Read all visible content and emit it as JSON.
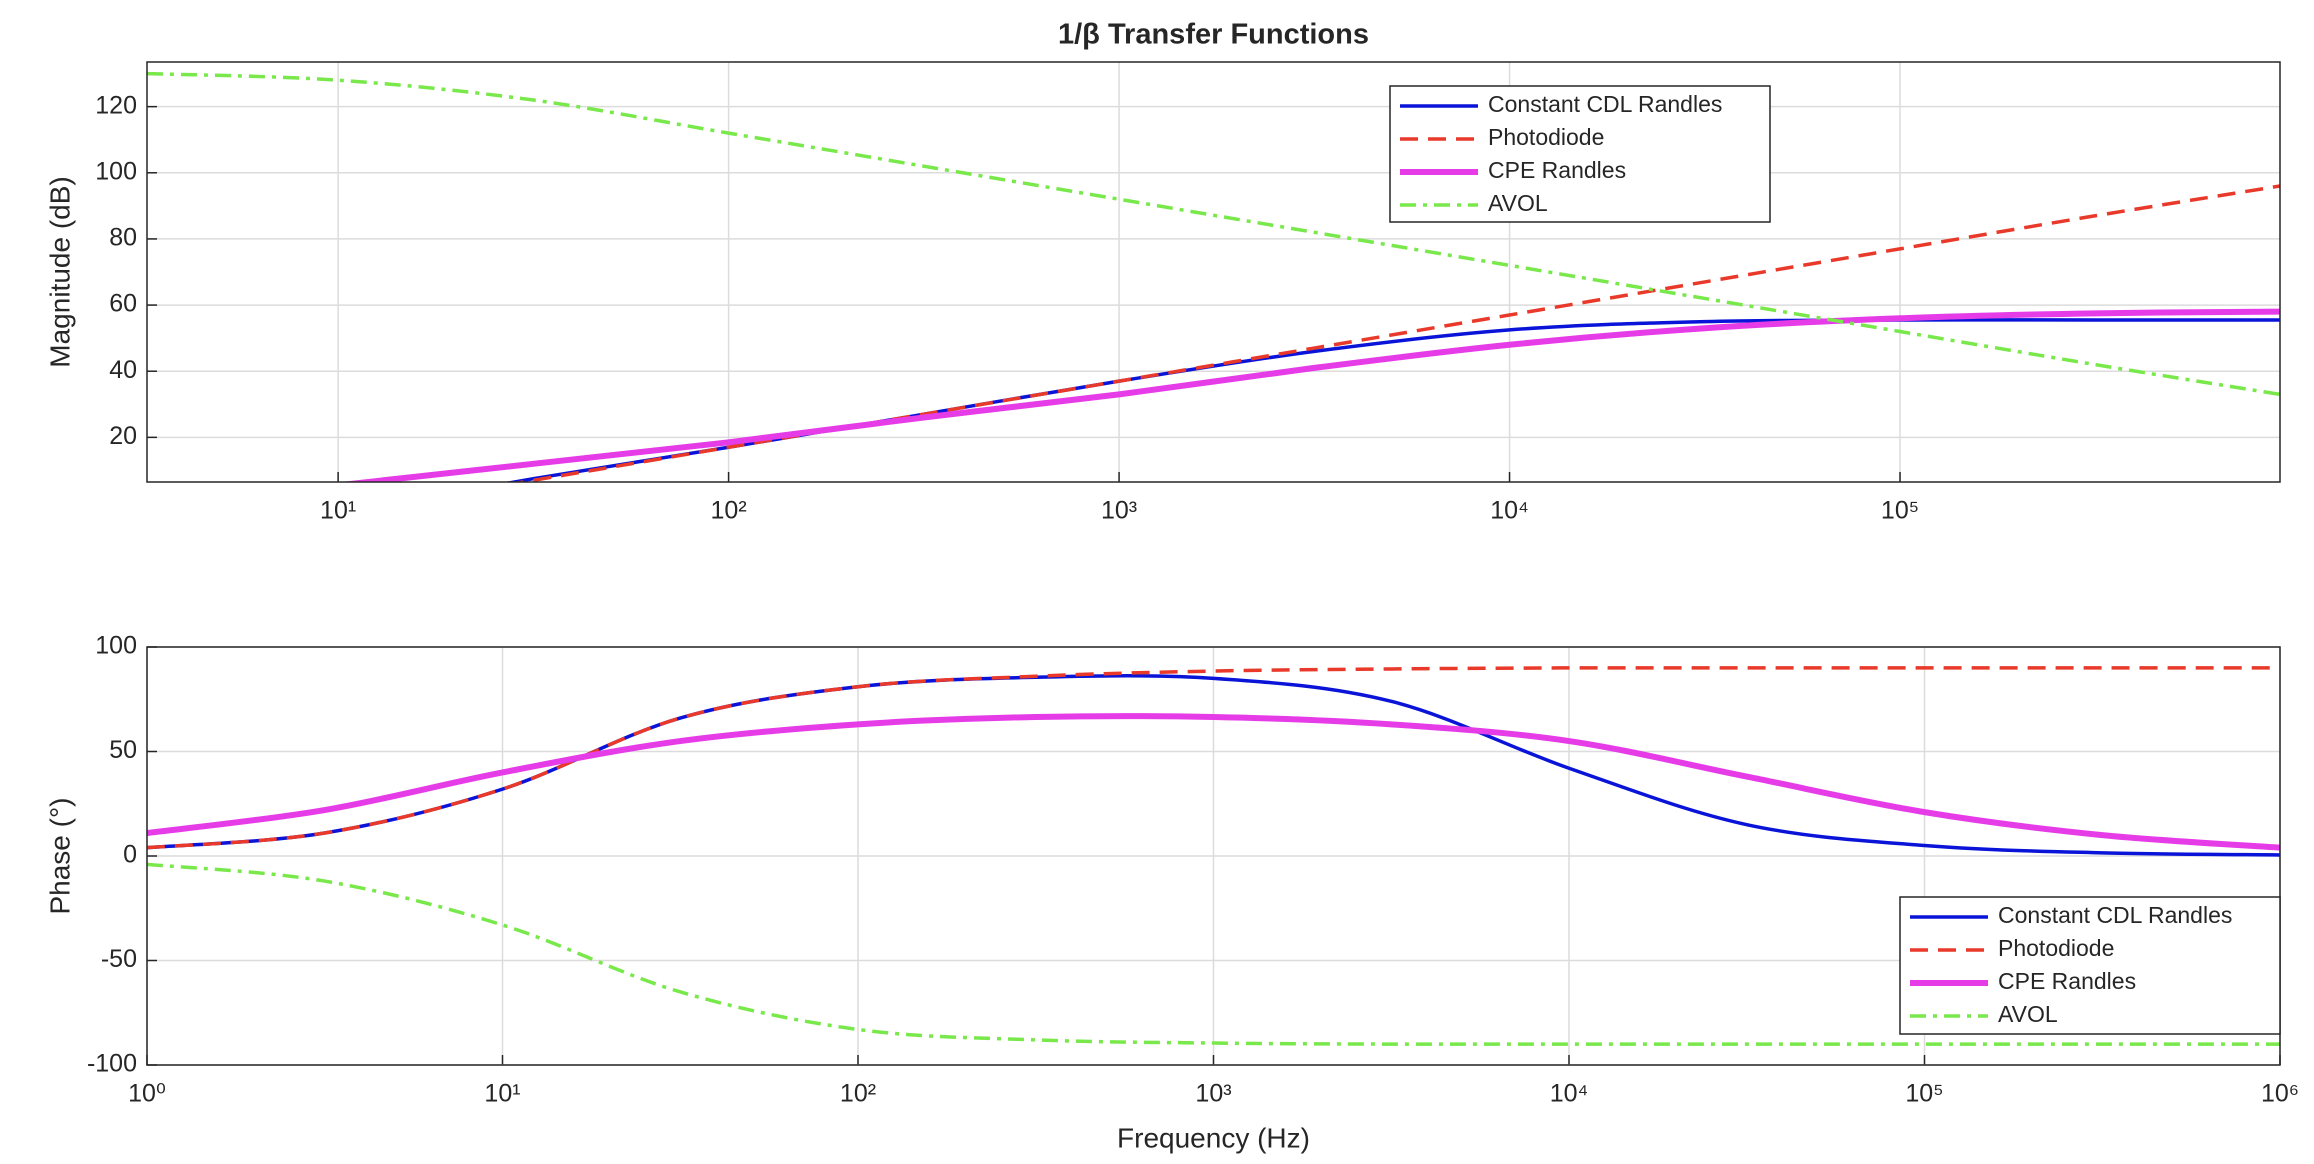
{
  "chart_data": [
    {
      "type": "line",
      "title": "1/β Transfer Functions",
      "ylabel": "Magnitude (dB)",
      "xscale": "log",
      "grid": true,
      "legend": "upper center right",
      "x": [
        3.24,
        10,
        31.6,
        100,
        316,
        1000,
        3162,
        10000,
        31623,
        100000,
        316228,
        940000
      ],
      "xlim": [
        3.24,
        940000
      ],
      "xticks": [
        {
          "value": 10,
          "label": "10¹"
        },
        {
          "value": 100,
          "label": "10²"
        },
        {
          "value": 1000,
          "label": "10³"
        },
        {
          "value": 10000,
          "label": "10⁴"
        },
        {
          "value": 100000,
          "label": "10⁵"
        }
      ],
      "ylim": [
        6.5,
        133.5
      ],
      "yticks": [
        20,
        40,
        60,
        80,
        100,
        120
      ],
      "series": [
        {
          "name": "Constant CDL Randles",
          "color": "#0a14d8",
          "linestyle": "solid",
          "linewidth": 3.5,
          "values": [
            -13,
            -3,
            7.5,
            17,
            27,
            37,
            46,
            52.5,
            55,
            55.5,
            55.5,
            55.5
          ]
        },
        {
          "name": "Photodiode",
          "color": "#e8392a",
          "linestyle": "dashed",
          "linewidth": 3.5,
          "values": [
            -13,
            -3,
            7,
            17,
            27,
            37,
            47,
            57,
            67,
            77,
            87,
            96
          ]
        },
        {
          "name": "CPE Randles",
          "color": "#e63ce8",
          "linestyle": "solid",
          "linewidth": 6,
          "values": [
            -1,
            5.5,
            12,
            18.5,
            26,
            33,
            41,
            48,
            53,
            56,
            57.5,
            58
          ]
        },
        {
          "name": "AVOL",
          "color": "#78e84a",
          "linestyle": "dashdot",
          "linewidth": 3.5,
          "values": [
            130,
            128,
            122,
            112,
            102,
            92,
            82,
            72,
            62,
            52,
            42,
            33
          ]
        }
      ]
    },
    {
      "type": "line",
      "ylabel": "Phase (°)",
      "xlabel": "Frequency (Hz)",
      "xscale": "log",
      "grid": true,
      "legend": "lower right",
      "x": [
        1,
        3.16,
        10,
        31.6,
        100,
        316,
        1000,
        3162,
        10000,
        31623,
        100000,
        316228,
        1000000
      ],
      "xlim": [
        1,
        1000000
      ],
      "xticks": [
        {
          "value": 1,
          "label": "10⁰"
        },
        {
          "value": 10,
          "label": "10¹"
        },
        {
          "value": 100,
          "label": "10²"
        },
        {
          "value": 1000,
          "label": "10³"
        },
        {
          "value": 10000,
          "label": "10⁴"
        },
        {
          "value": 100000,
          "label": "10⁵"
        },
        {
          "value": 1000000,
          "label": "10⁶"
        }
      ],
      "ylim": [
        -100,
        100
      ],
      "yticks": [
        -100,
        -50,
        0,
        50,
        100
      ],
      "series": [
        {
          "name": "Constant CDL Randles",
          "color": "#0a14d8",
          "linestyle": "solid",
          "linewidth": 3.5,
          "values": [
            4,
            11,
            32,
            66,
            81,
            85.5,
            85,
            74,
            42,
            15,
            5,
            1.5,
            0.5
          ]
        },
        {
          "name": "Photodiode",
          "color": "#e8392a",
          "linestyle": "dashed",
          "linewidth": 3.5,
          "values": [
            4,
            11,
            32,
            66,
            81,
            86,
            88.5,
            89.5,
            90,
            90,
            90,
            90,
            90
          ]
        },
        {
          "name": "CPE Randles",
          "color": "#e63ce8",
          "linestyle": "solid",
          "linewidth": 6,
          "values": [
            11,
            22,
            40,
            55,
            63,
            66.5,
            66.5,
            63,
            55,
            38,
            21,
            10,
            4
          ]
        },
        {
          "name": "AVOL",
          "color": "#78e84a",
          "linestyle": "dashdot",
          "linewidth": 3.5,
          "values": [
            -4,
            -12,
            -33,
            -65,
            -83,
            -88,
            -89.5,
            -90,
            -90,
            -90,
            -90,
            -90,
            -90
          ]
        }
      ]
    }
  ]
}
